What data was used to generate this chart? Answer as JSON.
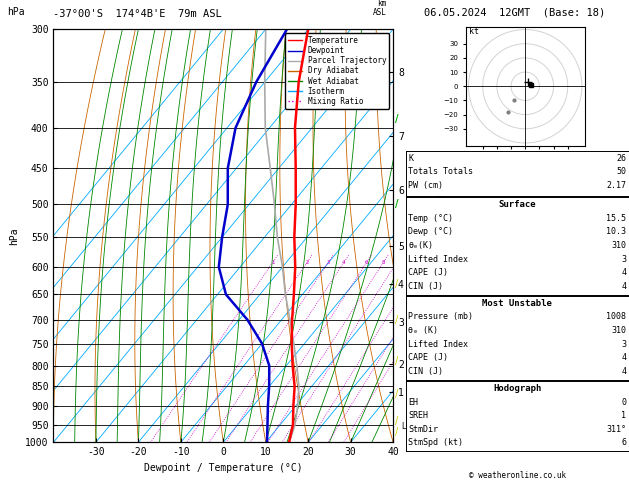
{
  "title_left": "-37°00'S  174°4B'E  79m ASL",
  "title_right": "06.05.2024  12GMT  (Base: 18)",
  "xlabel": "Dewpoint / Temperature (°C)",
  "ylabel_left": "hPa",
  "temp_color": "#ff0000",
  "dewpoint_color": "#0000cc",
  "parcel_color": "#aaaaaa",
  "dry_adiabat_color": "#cc6600",
  "wet_adiabat_color": "#008800",
  "isotherm_color": "#00aaff",
  "mixing_ratio_color": "#cc00cc",
  "bg_color": "#ffffff",
  "legend_entries": [
    "Temperature",
    "Dewpoint",
    "Parcel Trajectory",
    "Dry Adiabat",
    "Wet Adiabat",
    "Isotherm",
    "Mixing Ratio"
  ],
  "legend_colors": [
    "#ff0000",
    "#0000cc",
    "#aaaaaa",
    "#cc6600",
    "#008800",
    "#00aaff",
    "#cc00cc"
  ],
  "legend_styles": [
    "solid",
    "solid",
    "solid",
    "solid",
    "solid",
    "solid",
    "dotted"
  ],
  "pressure_ticks": [
    300,
    350,
    400,
    450,
    500,
    550,
    600,
    650,
    700,
    750,
    800,
    850,
    900,
    950,
    1000
  ],
  "temp_ticks": [
    -30,
    -20,
    -10,
    0,
    10,
    20,
    30,
    40
  ],
  "km_ticks": [
    1,
    2,
    3,
    4,
    5,
    6,
    7,
    8
  ],
  "km_pressures": [
    865,
    795,
    705,
    630,
    565,
    480,
    410,
    340
  ],
  "lcl_pressure": 955,
  "mixing_ratio_vals": [
    1,
    2,
    3,
    4,
    6,
    8,
    10,
    15,
    20,
    25
  ],
  "stats": {
    "K": 26,
    "Totals_Totals": 50,
    "PW_cm": "2.17",
    "Surface_Temp": "15.5",
    "Surface_Dewp": "10.3",
    "Surface_theta_e": 310,
    "Surface_LI": 3,
    "Surface_CAPE": 4,
    "Surface_CIN": 4,
    "MU_Pressure": 1008,
    "MU_theta_e": 310,
    "MU_LI": 3,
    "MU_CAPE": 4,
    "MU_CIN": 4,
    "Hodo_EH": 0,
    "Hodo_SREH": 1,
    "Hodo_StmDir": "311°",
    "Hodo_StmSpd": 6
  },
  "temp_profile_temp": [
    15.5,
    13.0,
    9.5,
    6.0,
    1.5,
    -3.0,
    -7.5,
    -12.0,
    -17.0,
    -23.0,
    -29.0,
    -36.0,
    -44.0,
    -52.0,
    -60.0
  ],
  "temp_profile_pres": [
    1000,
    950,
    900,
    850,
    800,
    750,
    700,
    650,
    600,
    550,
    500,
    450,
    400,
    350,
    300
  ],
  "dewp_profile_temp": [
    10.3,
    7.0,
    3.5,
    0.0,
    -4.0,
    -10.0,
    -18.0,
    -28.0,
    -35.0,
    -40.0,
    -45.0,
    -52.0,
    -58.0,
    -62.0,
    -65.0
  ],
  "dewp_profile_pres": [
    1000,
    950,
    900,
    850,
    800,
    750,
    700,
    650,
    600,
    550,
    500,
    450,
    400,
    350,
    300
  ],
  "parcel_profile_temp": [
    15.5,
    13.5,
    10.5,
    7.0,
    2.5,
    -2.5,
    -8.0,
    -14.0,
    -20.0,
    -27.0,
    -34.0,
    -42.0,
    -51.0,
    -60.0,
    -70.0
  ],
  "parcel_profile_pres": [
    1000,
    950,
    900,
    850,
    800,
    750,
    700,
    650,
    600,
    550,
    500,
    450,
    400,
    350,
    300
  ]
}
